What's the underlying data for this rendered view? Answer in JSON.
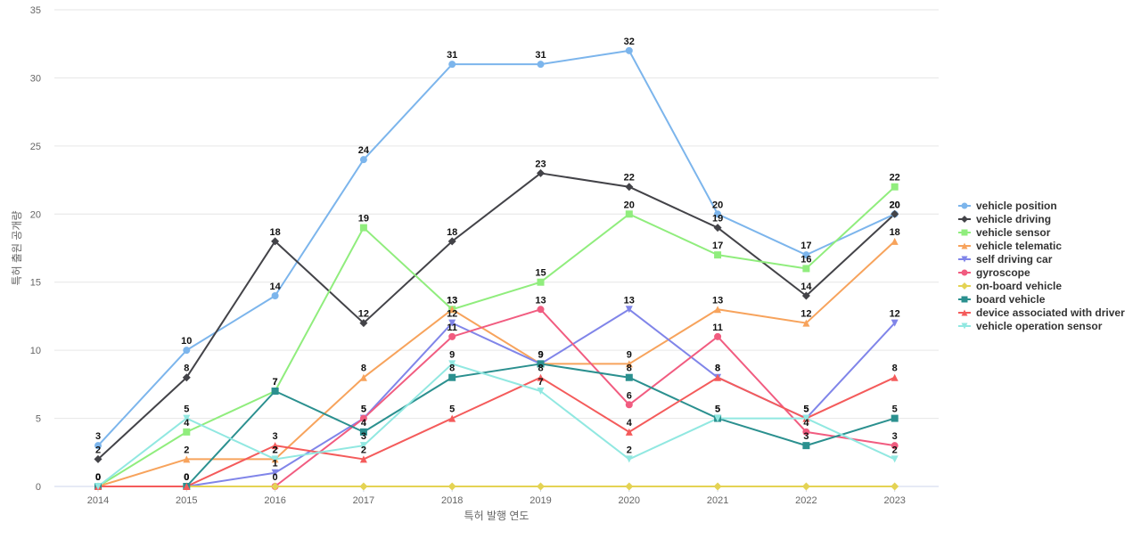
{
  "chart_data": {
    "type": "line",
    "title": "",
    "xlabel": "특허 발행 연도",
    "ylabel": "특허 출원 공개량",
    "x": [
      "2014",
      "2015",
      "2016",
      "2017",
      "2018",
      "2019",
      "2020",
      "2021",
      "2022",
      "2023"
    ],
    "ylim": [
      0,
      35
    ],
    "yticks": [
      0,
      5,
      10,
      15,
      20,
      25,
      30,
      35
    ],
    "grid": true,
    "legend_position": "right",
    "series": [
      {
        "name": "vehicle position",
        "color": "#7cb5ec",
        "marker": "circle",
        "values": [
          3,
          10,
          14,
          24,
          31,
          31,
          32,
          20,
          17,
          20
        ],
        "labels": true
      },
      {
        "name": "vehicle driving",
        "color": "#434348",
        "marker": "diamond",
        "values": [
          2,
          8,
          18,
          12,
          18,
          23,
          22,
          19,
          14,
          20
        ],
        "labels": true
      },
      {
        "name": "vehicle sensor",
        "color": "#90ed7d",
        "marker": "square",
        "values": [
          0,
          4,
          7,
          19,
          13,
          15,
          20,
          17,
          16,
          22
        ],
        "labels": true
      },
      {
        "name": "vehicle telematic",
        "color": "#f7a35c",
        "marker": "triangle",
        "values": [
          0,
          2,
          2,
          8,
          13,
          9,
          9,
          13,
          12,
          18
        ],
        "labels": true
      },
      {
        "name": "self driving car",
        "color": "#8085e9",
        "marker": "triangle-down",
        "values": [
          0,
          0,
          1,
          5,
          12,
          9,
          13,
          8,
          5,
          12
        ],
        "labels": true
      },
      {
        "name": "gyroscope",
        "color": "#f15c80",
        "marker": "circle",
        "values": [
          0,
          0,
          0,
          5,
          11,
          13,
          6,
          11,
          4,
          3
        ],
        "labels": true
      },
      {
        "name": "on-board vehicle",
        "color": "#e4d354",
        "marker": "diamond",
        "values": [
          0,
          0,
          0,
          0,
          0,
          0,
          0,
          0,
          0,
          0
        ],
        "labels": false
      },
      {
        "name": "board vehicle",
        "color": "#2b908f",
        "marker": "square",
        "values": [
          0,
          0,
          7,
          4,
          8,
          9,
          8,
          5,
          3,
          5
        ],
        "labels": true
      },
      {
        "name": "device associated with driver",
        "color": "#f45b5b",
        "marker": "triangle",
        "values": [
          0,
          0,
          3,
          2,
          5,
          8,
          4,
          8,
          5,
          8
        ],
        "labels": true
      },
      {
        "name": "vehicle operation sensor",
        "color": "#91e8e1",
        "marker": "triangle-down",
        "values": [
          0,
          5,
          2,
          3,
          9,
          7,
          2,
          5,
          5,
          2
        ],
        "labels": true
      }
    ]
  }
}
